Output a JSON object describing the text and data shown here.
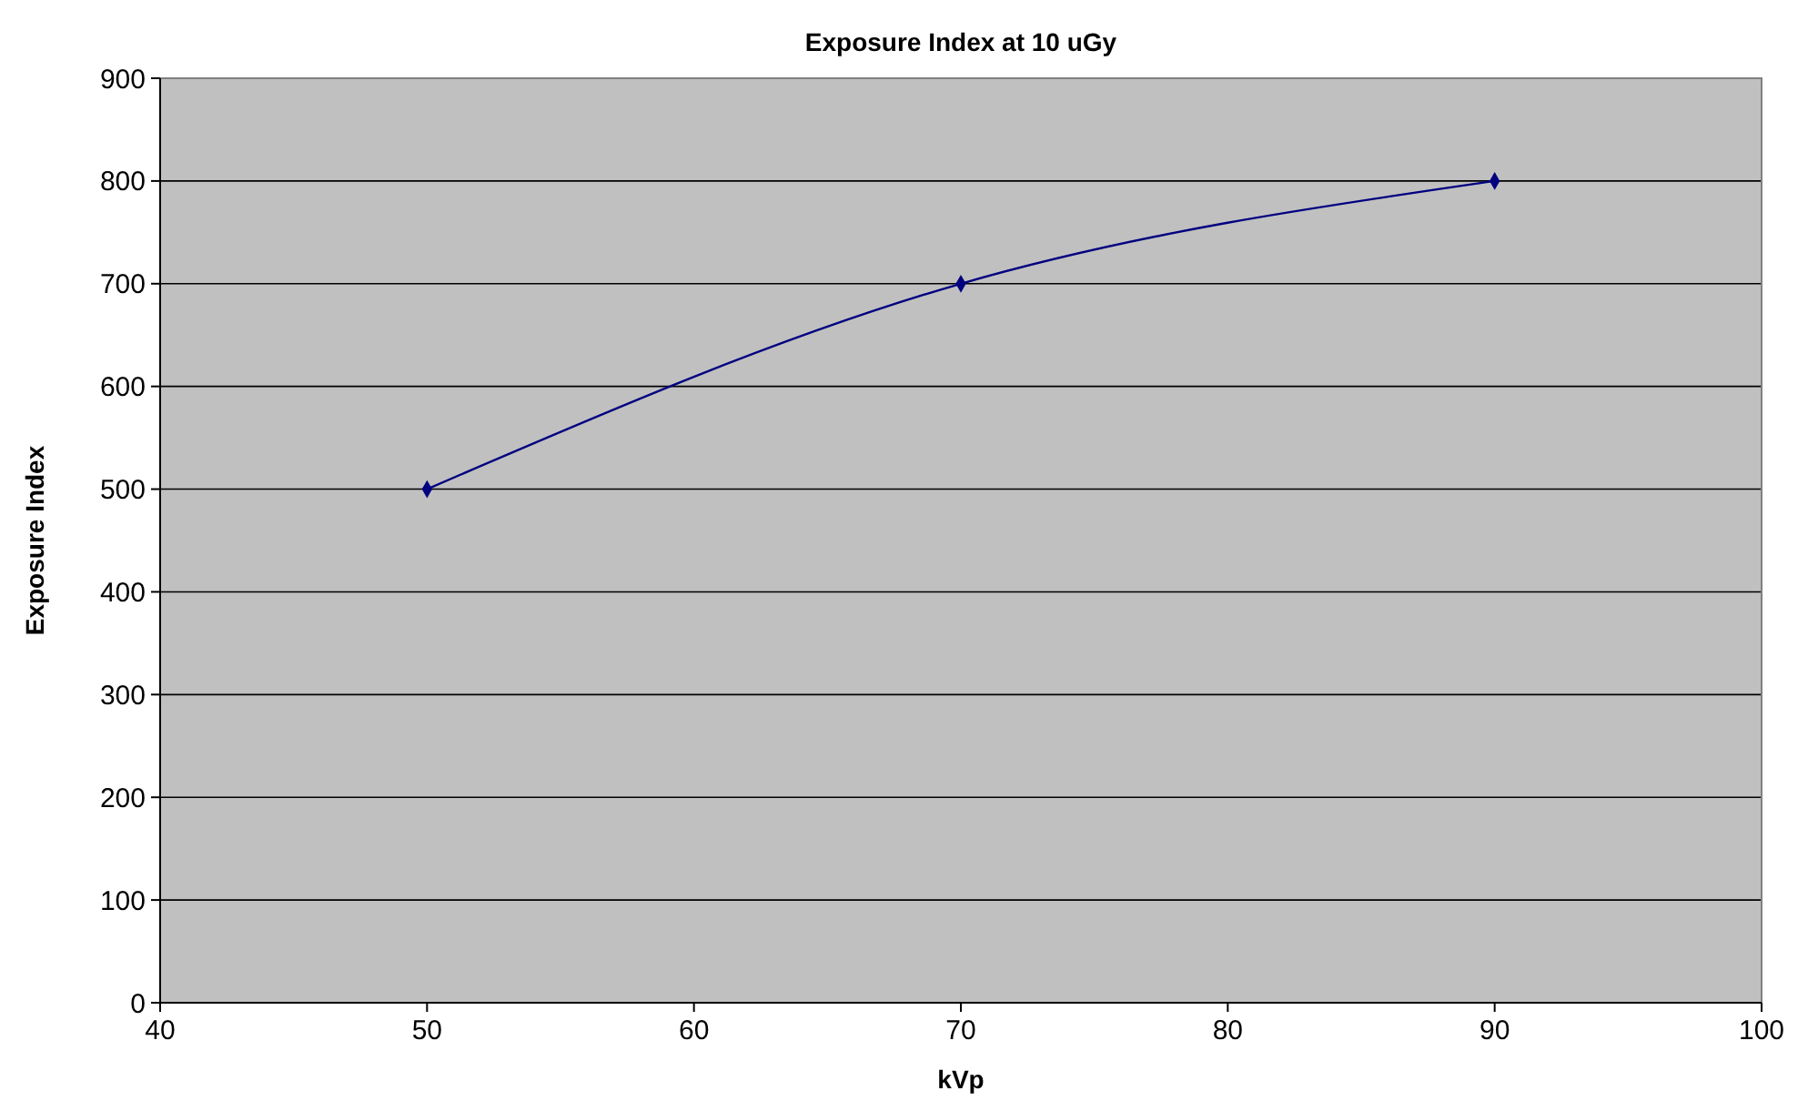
{
  "chart_data": {
    "type": "line",
    "title": "Exposure Index at 10 uGy",
    "xlabel": "kVp",
    "ylabel": "Exposure Index",
    "x": [
      50,
      70,
      90
    ],
    "series": [
      {
        "color": "#000080",
        "values": [
          500,
          700,
          800
        ]
      }
    ],
    "xlim": [
      40,
      100
    ],
    "xticks": [
      40,
      50,
      60,
      70,
      80,
      90,
      100
    ],
    "ylim": [
      0,
      900
    ],
    "yticks": [
      0,
      100,
      200,
      300,
      400,
      500,
      600,
      700,
      800,
      900
    ],
    "grid": "y",
    "marker": "diamond",
    "line_style": "solid"
  }
}
